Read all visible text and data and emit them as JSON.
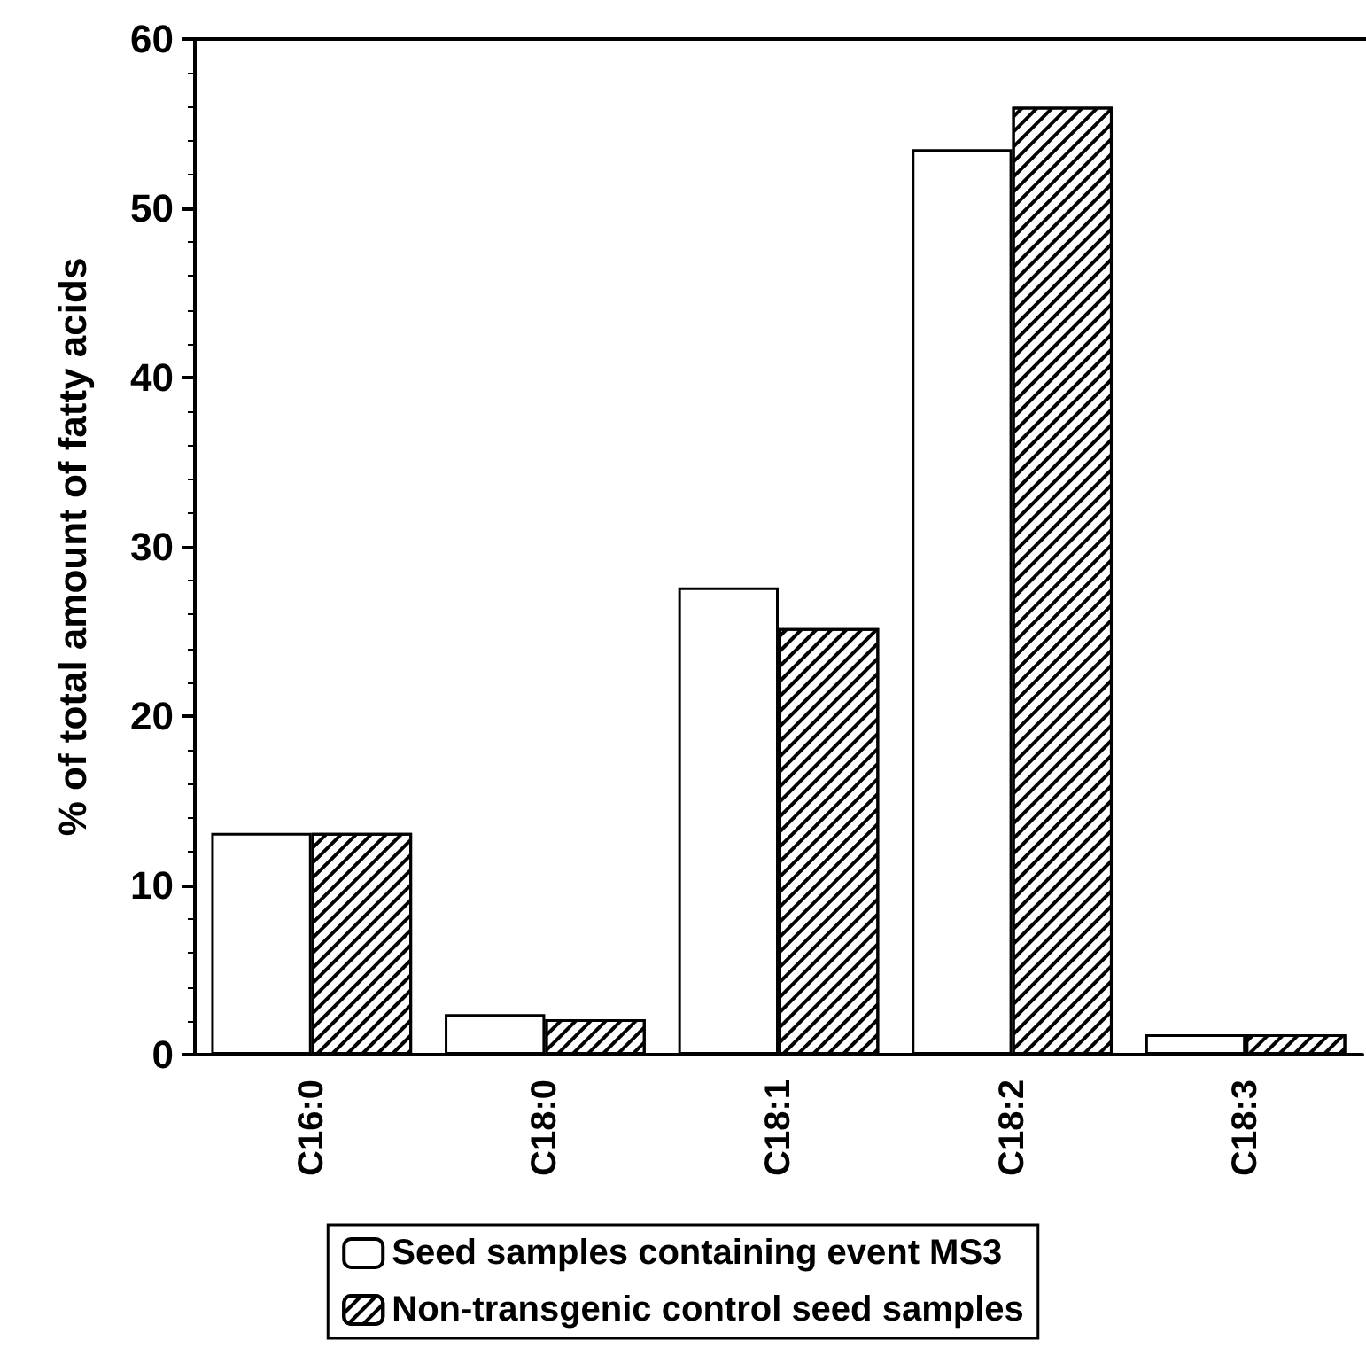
{
  "chart_data": {
    "type": "bar",
    "ylabel": "% of total amount of fatty acids",
    "categories": [
      "C16:0",
      "C18:0",
      "C18:1",
      "C18:2",
      "C18:3"
    ],
    "series": [
      {
        "name": "Seed samples containing event MS3",
        "color": "#ffffff",
        "values": [
          13.1,
          2.4,
          27.6,
          53.5,
          1.2
        ]
      },
      {
        "name": "Non-transgenic control seed samples",
        "color": "#000000",
        "values": [
          13.1,
          2.1,
          25.2,
          56.0,
          1.2
        ]
      }
    ],
    "ylim": [
      0,
      60
    ],
    "yticks": [
      0,
      10,
      20,
      30,
      40,
      50,
      60
    ],
    "grid": false,
    "legend": "bottom"
  }
}
